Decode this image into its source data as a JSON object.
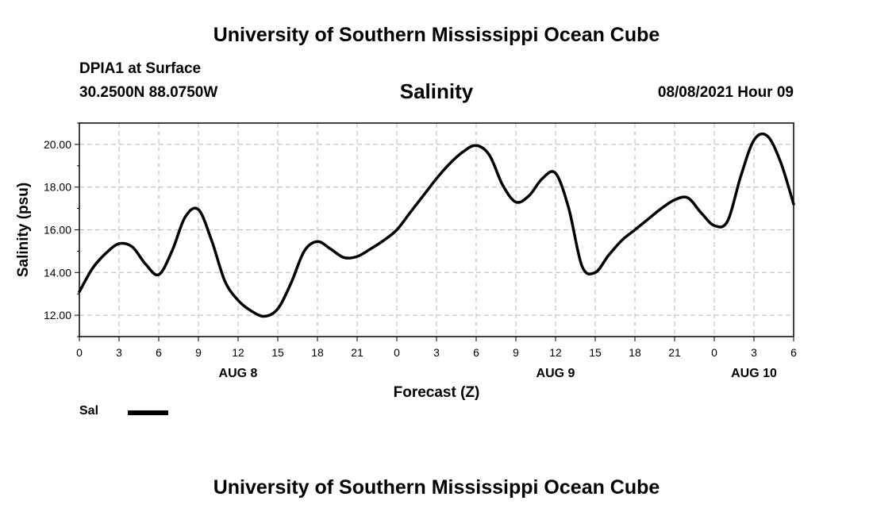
{
  "header": {
    "title_top": "University of Southern Mississippi Ocean Cube",
    "title_bottom": "University of Southern Mississippi Ocean Cube",
    "station": "DPIA1 at Surface",
    "coords": "30.2500N  88.0750W",
    "datetime": "08/08/2021 Hour 09"
  },
  "legend": {
    "label": "Sal",
    "color": "#000000"
  },
  "chart_data": {
    "type": "line",
    "title": "Salinity",
    "xlabel": "Forecast (Z)",
    "ylabel": "Salinity (psu)",
    "xlim": [
      0,
      54
    ],
    "ylim": [
      11,
      21
    ],
    "grid": true,
    "x_ticks": [
      0,
      3,
      6,
      9,
      12,
      15,
      18,
      21,
      24,
      27,
      30,
      33,
      36,
      39,
      42,
      45,
      48,
      51,
      54
    ],
    "x_tick_labels": [
      "0",
      "3",
      "6",
      "9",
      "12",
      "15",
      "18",
      "21",
      "0",
      "3",
      "6",
      "9",
      "12",
      "15",
      "18",
      "21",
      "0",
      "3",
      "6"
    ],
    "y_ticks": [
      12,
      14,
      16,
      18,
      20
    ],
    "y_tick_labels": [
      "12.00",
      "14.00",
      "16.00",
      "18.00",
      "20.00"
    ],
    "day_labels": [
      {
        "x": 12,
        "label": "AUG 8"
      },
      {
        "x": 36,
        "label": "AUG 9"
      },
      {
        "x": 51,
        "label": "AUG 10"
      }
    ],
    "series": [
      {
        "name": "Sal",
        "x": [
          0,
          1,
          2,
          3,
          4,
          5,
          6,
          7,
          8,
          9,
          10,
          11,
          12,
          13,
          14,
          15,
          16,
          17,
          18,
          19,
          20,
          21,
          22,
          23,
          24,
          25,
          26,
          27,
          28,
          29,
          30,
          31,
          32,
          33,
          34,
          35,
          36,
          37,
          38,
          39,
          40,
          41,
          42,
          43,
          44,
          45,
          46,
          47,
          48,
          49,
          50,
          51,
          52,
          53,
          54
        ],
        "values": [
          13.1,
          14.2,
          14.9,
          15.35,
          15.2,
          14.4,
          13.9,
          15.0,
          16.6,
          16.95,
          15.5,
          13.6,
          12.7,
          12.2,
          11.95,
          12.3,
          13.5,
          15.0,
          15.45,
          15.1,
          14.7,
          14.75,
          15.1,
          15.5,
          16.0,
          16.8,
          17.6,
          18.4,
          19.1,
          19.65,
          19.95,
          19.5,
          18.1,
          17.3,
          17.6,
          18.4,
          18.65,
          17.0,
          14.3,
          14.0,
          14.8,
          15.5,
          16.0,
          16.5,
          17.0,
          17.4,
          17.5,
          16.8,
          16.2,
          16.4,
          18.5,
          20.2,
          20.4,
          19.2,
          17.2
        ]
      }
    ]
  }
}
